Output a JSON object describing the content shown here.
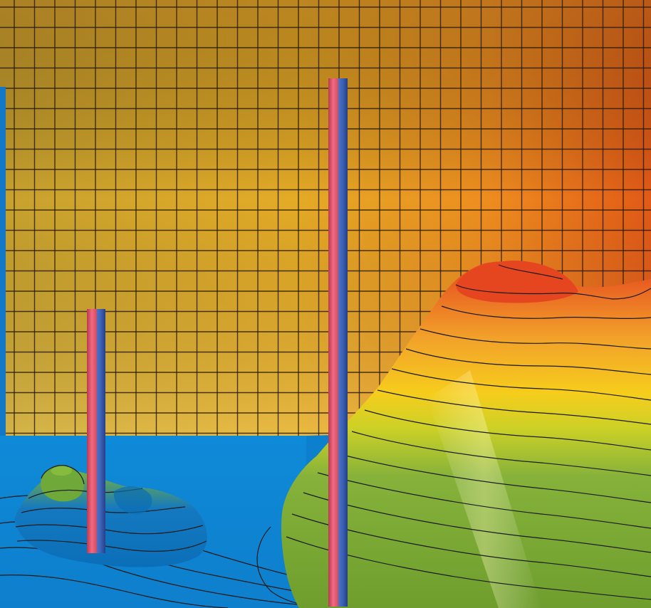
{
  "scene": {
    "description_free": true,
    "colors": {
      "wall_left": "#c9a02a",
      "wall_mid": "#e2a622",
      "wall_right": "#e0641a",
      "grid_line": "#2a1f10",
      "water": "#1e8fd6",
      "water_edge": "#0b78c8",
      "mound_low": "#7aa83a",
      "mound_mid": "#f1d21e",
      "mound_high": "#e6431f",
      "rod_red": "#e8536a",
      "rod_blue": "#3a5fb4",
      "contour": "#1a1a1a",
      "left_bar": "#1478c8"
    },
    "objects": [
      "sky-wall-grid",
      "water-surface",
      "large-contour-mound",
      "small-contour-mound",
      "measuring-rod-left",
      "measuring-rod-center"
    ]
  }
}
